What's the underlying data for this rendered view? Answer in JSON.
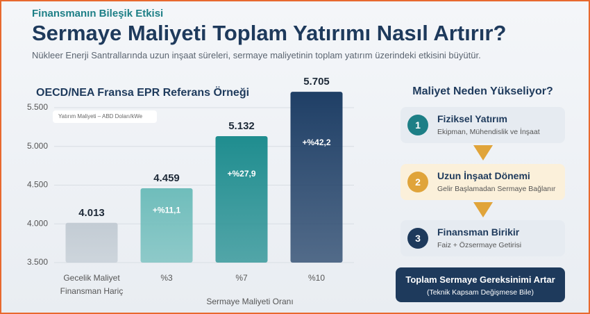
{
  "header": {
    "kicker": "Finansmanın Bileşik Etkisi",
    "title": "Sermaye Maliyeti Toplam Yatırımı Nasıl Artırır?",
    "description": "Nükleer Enerji Santrallarında uzun inşaat süreleri, sermaye maliyetinin toplam yatırım üzerindeki etkisini büyütür."
  },
  "chart_data": {
    "type": "bar",
    "title": "OECD/NEA Fransa EPR Referans Örneği",
    "legend_label": "Yatırım Maliyeti – ABD Doları/kWe",
    "x_label": "Sermaye Maliyeti Oranı",
    "categories": [
      "Gecelik Maliyet Finansman Hariç",
      "%3",
      "%7",
      "%10"
    ],
    "values": [
      4013,
      4459,
      5132,
      5705
    ],
    "value_labels": [
      "4.013",
      "4.459",
      "5.132",
      "5.705"
    ],
    "annotations": [
      null,
      "+%11,1",
      "+%27,9",
      "+%42,2"
    ],
    "colors": [
      "#c3ccd4",
      "#6fbdbb",
      "#1f8d8f",
      "#1f3f66"
    ],
    "ylim": [
      3500,
      5800
    ],
    "yticks": [
      {
        "value": 3500,
        "label": "3.500"
      },
      {
        "value": 4000,
        "label": "4.000"
      },
      {
        "value": 4500,
        "label": "4.500"
      },
      {
        "value": 5000,
        "label": "5.000"
      },
      {
        "value": 5500,
        "label": "5.500"
      }
    ],
    "grid": true
  },
  "sidebar": {
    "title": "Maliyet Neden Yükseliyor?",
    "steps": [
      {
        "number": "1",
        "title": "Fiziksel Yatırım",
        "text": "Ekipman, Mühendislik ve İnşaat"
      },
      {
        "number": "2",
        "title": "Uzun İnşaat Dönemi",
        "text": "Gelir Başlamadan Sermaye Bağlanır"
      },
      {
        "number": "3",
        "title": "Finansman Birikir",
        "text": "Faiz + Özsermaye Getirisi"
      }
    ],
    "result": {
      "title": "Toplam Sermaye Gereksinimi Artar",
      "note": "(Teknik Kapsam Değişmese Bile)"
    }
  }
}
